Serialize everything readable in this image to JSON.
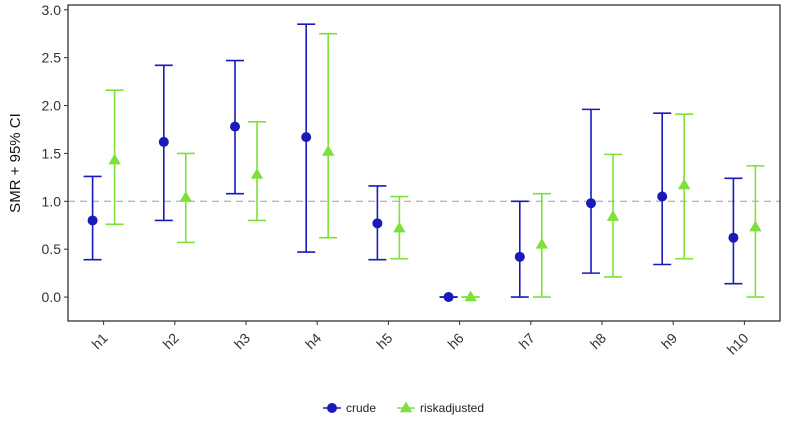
{
  "chart_data": {
    "type": "scatter",
    "subtype": "point-with-error-bars",
    "title": "",
    "xlabel": "",
    "ylabel": "SMR + 95% CI",
    "ylim": [
      -0.25,
      3.05
    ],
    "yticks": [
      "0.0",
      "0.5",
      "1.0",
      "1.5",
      "2.0",
      "2.5",
      "3.0"
    ],
    "categories": [
      "h1",
      "h2",
      "h3",
      "h4",
      "h5",
      "h6",
      "h7",
      "h8",
      "h9",
      "h10"
    ],
    "reference_line": {
      "y": 1.0,
      "style": "dashed",
      "color": "#b8b8c8"
    },
    "grid": false,
    "legend": {
      "position": "bottom",
      "entries": [
        "crude",
        "riskadjusted"
      ]
    },
    "series": [
      {
        "name": "crude",
        "marker": "circle",
        "color": "#1a1ab8",
        "values": [
          0.8,
          1.62,
          1.78,
          1.67,
          0.77,
          0.0,
          0.42,
          0.98,
          1.05,
          0.62
        ],
        "lower": [
          0.39,
          0.8,
          1.08,
          0.47,
          0.39,
          0.0,
          0.0,
          0.25,
          0.34,
          0.14
        ],
        "upper": [
          1.26,
          2.42,
          2.47,
          2.85,
          1.16,
          0.0,
          1.0,
          1.96,
          1.92,
          1.24
        ]
      },
      {
        "name": "riskadjusted",
        "marker": "triangle",
        "color": "#7fe03a",
        "values": [
          1.43,
          1.04,
          1.28,
          1.52,
          0.72,
          0.0,
          0.55,
          0.84,
          1.17,
          0.73
        ],
        "lower": [
          0.76,
          0.57,
          0.8,
          0.62,
          0.4,
          0.0,
          0.0,
          0.21,
          0.4,
          0.0
        ],
        "upper": [
          2.16,
          1.5,
          1.83,
          2.75,
          1.05,
          0.0,
          1.08,
          1.49,
          1.91,
          1.37
        ]
      }
    ]
  }
}
